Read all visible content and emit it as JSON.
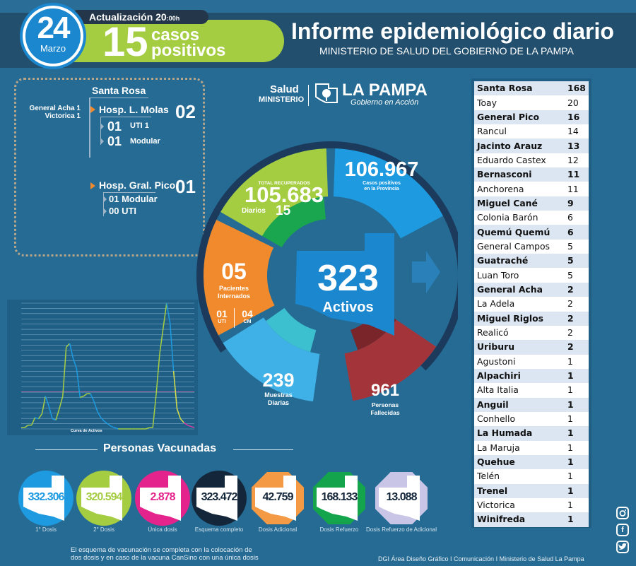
{
  "header": {
    "date_day": "24",
    "date_month": "Marzo",
    "update_label": "Actualización 20",
    "update_time_suffix": ":00h",
    "daily_cases": "15",
    "daily_cases_label_1": "casos",
    "daily_cases_label_2": "positivos",
    "title": "Informe epidemiológico diario",
    "subtitle": "MINISTERIO DE SALUD DEL GOBIERNO DE LA PAMPA"
  },
  "logo": {
    "salud": "Salud",
    "ministerio": "MINISTERIO",
    "province": "LA PAMPA",
    "tagline": "Gobierno en Acción"
  },
  "hospitals": {
    "title": "Santa Rosa",
    "other_locations": [
      "General Acha 1",
      "Victorica 1"
    ],
    "molas": {
      "name": "Hosp. L. Molas",
      "count": "02",
      "sub": [
        {
          "num": "01",
          "label": "UTI 1"
        },
        {
          "num": "01",
          "label": "Modular"
        }
      ]
    },
    "pico": {
      "name": "Hosp. Gral. Pico",
      "count": "01",
      "sub": [
        {
          "num": "01",
          "label": "Modular"
        },
        {
          "num": "00",
          "label": "UTI"
        }
      ]
    }
  },
  "dial": {
    "recovered_label": "TOTAL RECUPERADOS",
    "recovered": "105.683",
    "recovered_daily_label": "Diarios",
    "recovered_daily": "15",
    "positives": "106.967",
    "positives_label_1": "Casos positivos",
    "positives_label_2": "en la Provincia",
    "hospitalized": "05",
    "hospitalized_label_1": "Pacientes",
    "hospitalized_label_2": "Internados",
    "uti": "01",
    "uti_label": "UTI",
    "cm": "04",
    "cm_label": "CM",
    "active": "323",
    "active_label": "Activos",
    "samples": "239",
    "samples_label_1": "Muestras",
    "samples_label_2": "Diarias",
    "deaths": "961",
    "deaths_label_1": "Personas",
    "deaths_label_2": "Fallecidas",
    "colors": {
      "recovered": "#a5cd42",
      "positives": "#1d9ae0",
      "hospitalized": "#f08a2c",
      "active": "#1a87cf",
      "samples": "#3fb1e6",
      "deaths": "#a3353a",
      "ring_green": "#19a64e"
    }
  },
  "municipalities": [
    {
      "name": "Santa Rosa",
      "cases": "168"
    },
    {
      "name": "Toay",
      "cases": "20"
    },
    {
      "name": "General Pico",
      "cases": "16"
    },
    {
      "name": "Rancul",
      "cases": "14"
    },
    {
      "name": "Jacinto Arauz",
      "cases": "13"
    },
    {
      "name": "Eduardo Castex",
      "cases": "12"
    },
    {
      "name": "Bernasconi",
      "cases": "11"
    },
    {
      "name": "Anchorena",
      "cases": "11"
    },
    {
      "name": "Miguel Cané",
      "cases": "9"
    },
    {
      "name": "Colonia Barón",
      "cases": "6"
    },
    {
      "name": "Quemú Quemú",
      "cases": "6"
    },
    {
      "name": "General Campos",
      "cases": "5"
    },
    {
      "name": "Guatraché",
      "cases": "5"
    },
    {
      "name": "Luan Toro",
      "cases": "5"
    },
    {
      "name": "General Acha",
      "cases": "2"
    },
    {
      "name": "La Adela",
      "cases": "2"
    },
    {
      "name": "Miguel Riglos",
      "cases": "2"
    },
    {
      "name": "Realicó",
      "cases": "2"
    },
    {
      "name": "Uriburu",
      "cases": "2"
    },
    {
      "name": "Agustoni",
      "cases": "1"
    },
    {
      "name": "Alpachiri",
      "cases": "1"
    },
    {
      "name": "Alta Italia",
      "cases": "1"
    },
    {
      "name": "Anguil",
      "cases": "1"
    },
    {
      "name": "Conhello",
      "cases": "1"
    },
    {
      "name": "La Humada",
      "cases": "1"
    },
    {
      "name": "La Maruja",
      "cases": "1"
    },
    {
      "name": "Quehue",
      "cases": "1"
    },
    {
      "name": "Telén",
      "cases": "1"
    },
    {
      "name": "Trenel",
      "cases": "1"
    },
    {
      "name": "Victorica",
      "cases": "1"
    },
    {
      "name": "Winifreda",
      "cases": "1"
    }
  ],
  "chart_data": {
    "type": "line",
    "title": "Curva de Activos",
    "xlabel": "",
    "ylabel": "",
    "grid": true,
    "ylim": [
      0,
      100
    ],
    "x": [
      0,
      2,
      4,
      6,
      8,
      10,
      12,
      14,
      16,
      18,
      20,
      22,
      24,
      26,
      28,
      30,
      32,
      34,
      36,
      38,
      40,
      42,
      44,
      46,
      48,
      50,
      52,
      54,
      56,
      58,
      60,
      62,
      64,
      66,
      68,
      70,
      72,
      74,
      76,
      78,
      80,
      82,
      84,
      86,
      88,
      90,
      92,
      94,
      96,
      98,
      100
    ],
    "series": [
      {
        "name": "Activos",
        "values": [
          1,
          1,
          3,
          3,
          9,
          8,
          12,
          26,
          18,
          8,
          7,
          16,
          26,
          65,
          68,
          56,
          48,
          25,
          26,
          28,
          28,
          22,
          14,
          9,
          6,
          4,
          2,
          1,
          0,
          0,
          0,
          0,
          0,
          0,
          0,
          0,
          0,
          1,
          1,
          28,
          60,
          80,
          100,
          84,
          46,
          16,
          8,
          5,
          3,
          2,
          1
        ]
      }
    ],
    "colors": {
      "rising": "#a5cd42",
      "falling": "#1d9ae0",
      "end": "#d9e04a",
      "tail": "#d43ca0",
      "threshold": "#d36aa8"
    }
  },
  "vaccination": {
    "title": "Personas Vacunadas",
    "items": [
      {
        "value": "332.306",
        "label": "1° Dosis",
        "color": "#1d9ae0",
        "text_color": "#1d9ae0",
        "shape": "circle"
      },
      {
        "value": "320.594",
        "label": "2° Dosis",
        "color": "#a5cd42",
        "text_color": "#a5cd42",
        "shape": "circle"
      },
      {
        "value": "2.878",
        "label": "Única dosis",
        "color": "#e4248c",
        "text_color": "#e4248c",
        "shape": "circle"
      },
      {
        "value": "323.472",
        "label": "Esquema completo",
        "color": "#14263a",
        "text_color": "#14263a",
        "shape": "circle"
      },
      {
        "value": "42.759",
        "label": "Dosis Adicional",
        "color": "#f49a45",
        "text_color": "#14263a",
        "shape": "octagon"
      },
      {
        "value": "168.133",
        "label": "Dosis Refuerzo",
        "color": "#14a54c",
        "text_color": "#14263a",
        "shape": "octagon"
      },
      {
        "value": "13.088",
        "label": "Dosis Refuerzo de Adicional",
        "color": "#c9c5e6",
        "text_color": "#14263a",
        "shape": "octagon"
      }
    ]
  },
  "footer": {
    "note_1": "El esquema de vacunación se completa con la colocación de",
    "note_2": "dos dosis y en caso de la vacuna CanSino con una única dosis",
    "credit": "DGI Área Diseño Gráfico  I Comunicación I Ministerio de Salud La Pampa"
  },
  "social": [
    "instagram-icon",
    "facebook-icon",
    "twitter-icon"
  ]
}
